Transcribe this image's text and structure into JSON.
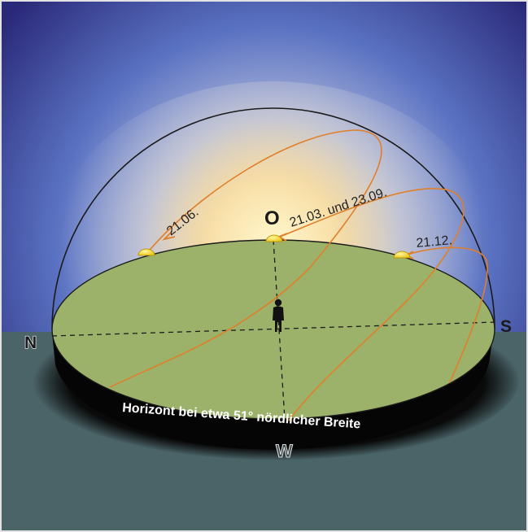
{
  "diagram": {
    "directions": {
      "north": "N",
      "east": "O",
      "south": "S",
      "west": "W"
    },
    "sun_paths": [
      {
        "label": "21.06."
      },
      {
        "label": "21.03. und 23.09."
      },
      {
        "label": "21.12."
      }
    ],
    "horizon_caption": "Horizont bei etwa 51° nördlicher Breite",
    "colors": {
      "sky_top": "#2b2a7a",
      "sky_mid": "#5b78c7",
      "glow": "#fff3b0",
      "ground": "#4b6468",
      "horizon_disc": "#9cb26a",
      "sun_path": "#e07f2a",
      "sun": "#f2d31c"
    },
    "icons": {
      "sun": "sun-icon",
      "observer": "person-icon"
    }
  }
}
